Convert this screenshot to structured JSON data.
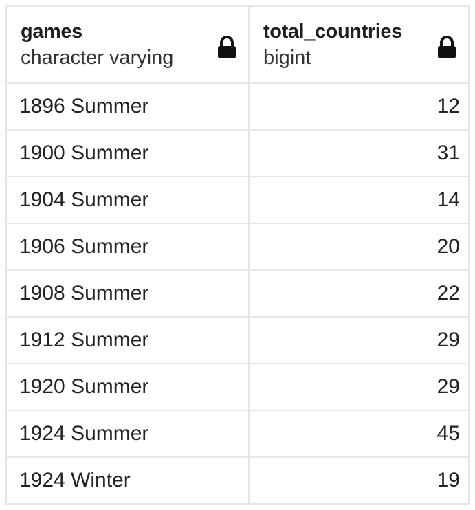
{
  "table": {
    "columns": [
      {
        "name": "games",
        "type": "character varying",
        "icon": "lock-icon"
      },
      {
        "name": "total_countries",
        "type": "bigint",
        "icon": "lock-icon"
      }
    ],
    "rows": [
      {
        "games": "1896 Summer",
        "total_countries": "12"
      },
      {
        "games": "1900 Summer",
        "total_countries": "31"
      },
      {
        "games": "1904 Summer",
        "total_countries": "14"
      },
      {
        "games": "1906 Summer",
        "total_countries": "20"
      },
      {
        "games": "1908 Summer",
        "total_countries": "22"
      },
      {
        "games": "1912 Summer",
        "total_countries": "29"
      },
      {
        "games": "1920 Summer",
        "total_countries": "29"
      },
      {
        "games": "1924 Summer",
        "total_countries": "45"
      },
      {
        "games": "1924 Winter",
        "total_countries": "19"
      }
    ]
  }
}
